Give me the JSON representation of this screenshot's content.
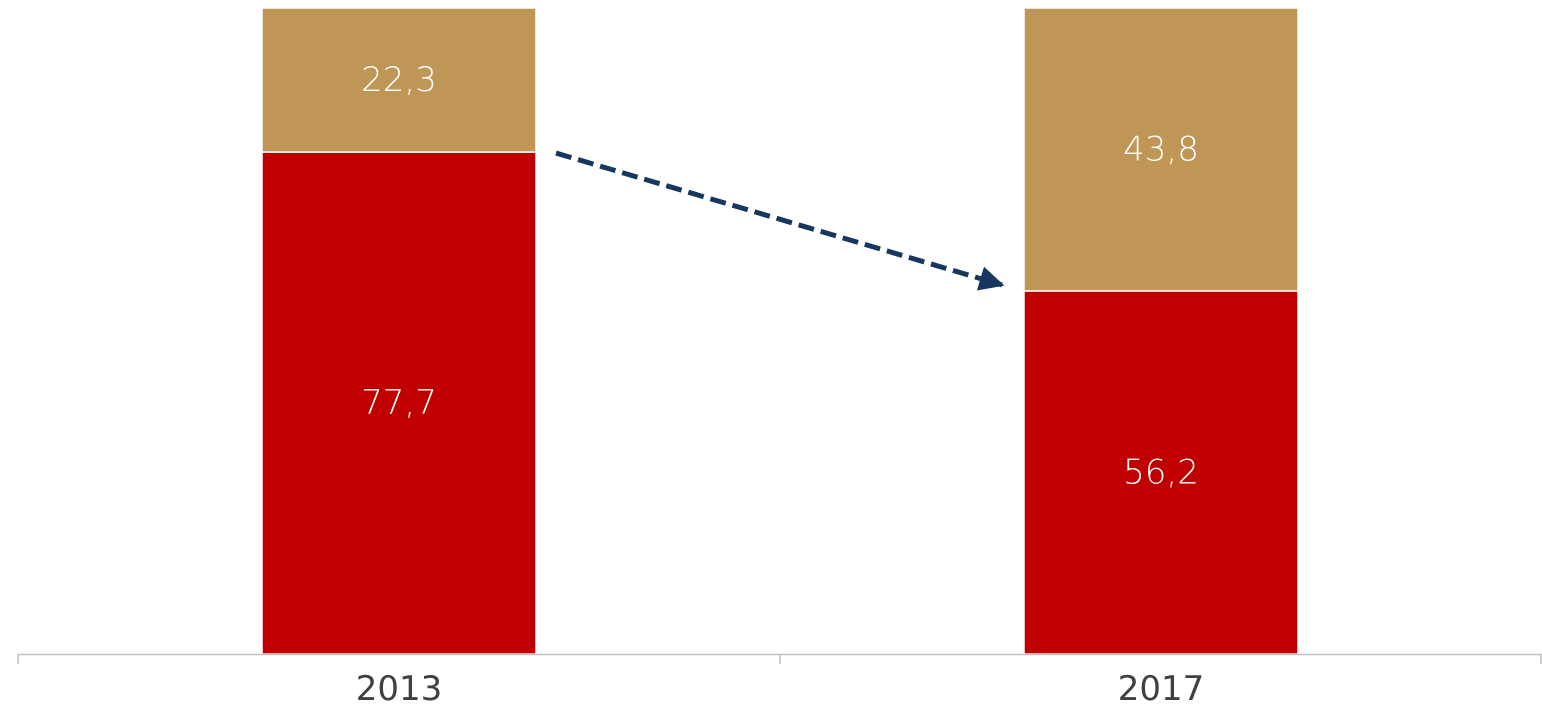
{
  "chart_data": {
    "type": "bar",
    "stacked": true,
    "categories": [
      "2013",
      "2017"
    ],
    "series": [
      {
        "values": [
          77.7,
          56.2
        ],
        "labels": [
          "77,7",
          "56,2"
        ],
        "color": "#c00000"
      },
      {
        "values": [
          22.3,
          43.8
        ],
        "labels": [
          "22,3",
          "43,8"
        ],
        "color": "#bf9655"
      }
    ],
    "ylim": [
      0,
      100
    ],
    "grid": false,
    "legend": "none",
    "annotation": {
      "type": "dashed-arrow",
      "from": "2013",
      "to": "2017",
      "color": "#17375e"
    }
  }
}
